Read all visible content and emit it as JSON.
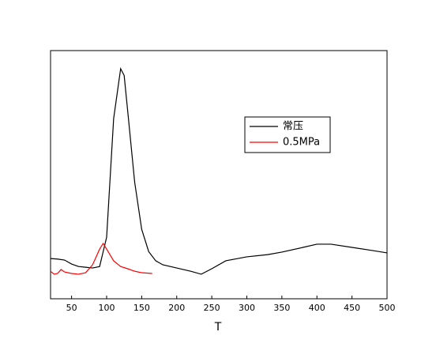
{
  "chart_data": {
    "type": "line",
    "x_label": "T",
    "xlim": [
      20,
      500
    ],
    "xticks": [
      50,
      100,
      150,
      200,
      250,
      300,
      350,
      400,
      450,
      500
    ],
    "ylim": [
      0,
      100
    ],
    "legend": "right",
    "series": [
      {
        "name": "常压",
        "color": "#000000",
        "x": [
          20,
          30,
          40,
          50,
          60,
          70,
          80,
          90,
          100,
          110,
          120,
          125,
          130,
          140,
          150,
          160,
          170,
          180,
          200,
          220,
          235,
          250,
          270,
          300,
          330,
          350,
          380,
          400,
          420,
          450,
          480,
          500
        ],
        "values": [
          16.2,
          16,
          15.6,
          14,
          13,
          12.7,
          12.4,
          13,
          24.8,
          72.6,
          92.7,
          90,
          75.8,
          47,
          28,
          19,
          15.3,
          13.7,
          12.4,
          11.1,
          9.9,
          12.1,
          15.3,
          16.9,
          17.8,
          18.8,
          20.7,
          22,
          22,
          20.7,
          19.4,
          18.5
        ]
      },
      {
        "name": "0.5MPa",
        "color": "#ff0000",
        "x": [
          20,
          25,
          30,
          35,
          40,
          50,
          60,
          70,
          80,
          90,
          95,
          100,
          110,
          120,
          130,
          140,
          150,
          165
        ],
        "values": [
          11.1,
          9.9,
          10.2,
          11.8,
          10.8,
          10.2,
          9.9,
          10.5,
          13.7,
          20,
          22.3,
          20,
          15.3,
          13,
          12.1,
          11.1,
          10.5,
          10.2
        ]
      }
    ]
  }
}
